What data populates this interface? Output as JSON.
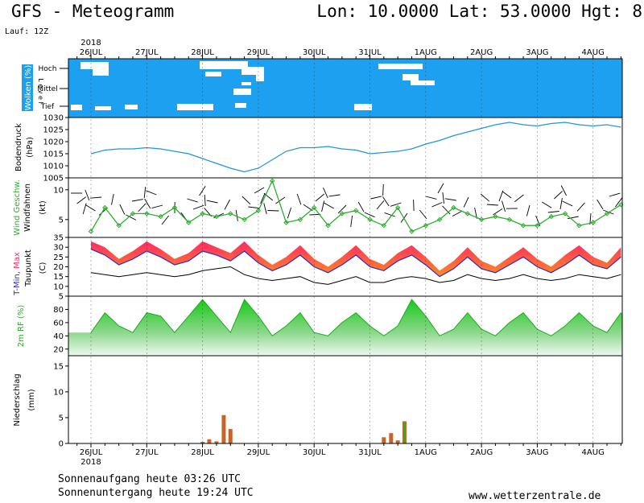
{
  "header": {
    "title": "GFS - Meteogramm",
    "coords": "Lon: 10.0000 Lat: 53.0000 Hgt: 8",
    "run": "Lauf: 12Z"
  },
  "footer": {
    "sunrise": "Sonnenaufgang heute 03:26 UTC",
    "sunset": "Sonnenuntergang heute 19:24 UTC",
    "site": "www.wetterzentrale.de"
  },
  "chart_data": {
    "type": "meteogram",
    "year_label": "2018",
    "dates": [
      "26JUL",
      "27JUL",
      "28JUL",
      "29JUL",
      "30JUL",
      "31JUL",
      "1AUG",
      "2AUG",
      "3AUG",
      "4AUG"
    ],
    "colors": {
      "cloud_bg": "#1ea0f0",
      "pressure_line": "#1e96dc",
      "wind_line": "#2cae2c",
      "temp_fill_low": "#ff8c1e",
      "temp_fill_high": "#ff2a64",
      "tmin_line": "#2a2ad0",
      "dewpoint_line": "#000000",
      "rh_fill": "#3cc83c",
      "precip_rain": "#c86428",
      "precip_conv": "#28b428"
    },
    "panels": [
      {
        "id": "clouds",
        "ylabel": "Wolken (%)",
        "ylabel2": "L e v e l",
        "levels": [
          "Hoch",
          "Mittel",
          "Tief"
        ]
      },
      {
        "id": "pressure",
        "ylabel": "Bodendruck",
        "unit": "(hPa)",
        "ylim": [
          1005,
          1030
        ],
        "ticks": [
          1005,
          1010,
          1015,
          1020,
          1025,
          1030
        ],
        "x": [
          0,
          0.25,
          0.5,
          0.75,
          1,
          1.25,
          1.5,
          1.75,
          2,
          2.25,
          2.5,
          2.75,
          3,
          3.25,
          3.5,
          3.75,
          4,
          4.25,
          4.5,
          4.75,
          5,
          5.25,
          5.5,
          5.75,
          6,
          6.25,
          6.5,
          6.75,
          7,
          7.25,
          7.5,
          7.75,
          8,
          8.25,
          8.5,
          8.75,
          9,
          9.25,
          9.5
        ],
        "values": [
          1015,
          1016.5,
          1017,
          1017,
          1017.5,
          1017,
          1016,
          1015,
          1013,
          1011,
          1009,
          1007.5,
          1009,
          1012.5,
          1016,
          1017.5,
          1017.5,
          1018,
          1017,
          1016.5,
          1015,
          1015.5,
          1016,
          1017,
          1019,
          1020.5,
          1022.5,
          1024,
          1025.5,
          1027,
          1028,
          1027,
          1026.5,
          1027.5,
          1028,
          1027,
          1026.5,
          1027,
          1026
        ]
      },
      {
        "id": "wind",
        "ylabel": "Wind Geschw.",
        "ylabel2": "Windfahnen",
        "unit": "(kt)",
        "ylim": [
          2,
          12
        ],
        "ticks": [
          5,
          10
        ],
        "x": [
          0,
          0.25,
          0.5,
          0.75,
          1,
          1.25,
          1.5,
          1.75,
          2,
          2.25,
          2.5,
          2.75,
          3,
          3.25,
          3.5,
          3.75,
          4,
          4.25,
          4.5,
          4.75,
          5,
          5.25,
          5.5,
          5.75,
          6,
          6.25,
          6.5,
          6.75,
          7,
          7.25,
          7.5,
          7.75,
          8,
          8.25,
          8.5,
          8.75,
          9,
          9.25,
          9.5
        ],
        "values": [
          3,
          7,
          4,
          6,
          6,
          5.5,
          7,
          4.5,
          6,
          5.5,
          6,
          5,
          6.5,
          11.5,
          4.5,
          5,
          7,
          4,
          6,
          6.5,
          5,
          4,
          7,
          3,
          4,
          5,
          7,
          6,
          5,
          5.5,
          5,
          4,
          4,
          5.5,
          6,
          4,
          4.5,
          6,
          7.5
        ]
      },
      {
        "id": "temperature",
        "ylabel": "T-Min, Max",
        "ylabel2": "Taupunkt",
        "unit": "(C)",
        "ylim": [
          5,
          35
        ],
        "ticks": [
          5,
          10,
          15,
          20,
          25,
          30,
          35
        ],
        "x": [
          0,
          0.25,
          0.5,
          0.75,
          1,
          1.25,
          1.5,
          1.75,
          2,
          2.25,
          2.5,
          2.75,
          3,
          3.25,
          3.5,
          3.75,
          4,
          4.25,
          4.5,
          4.75,
          5,
          5.25,
          5.5,
          5.75,
          6,
          6.25,
          6.5,
          6.75,
          7,
          7.25,
          7.5,
          7.75,
          8,
          8.25,
          8.5,
          8.75,
          9,
          9.25,
          9.5
        ],
        "tmax": [
          33,
          30,
          24,
          28,
          33,
          29,
          24,
          27,
          33,
          30,
          27,
          33,
          26,
          21,
          25,
          31,
          24,
          20,
          25,
          31,
          24,
          21,
          27,
          31,
          25,
          18,
          23,
          30,
          23,
          20,
          25,
          30,
          24,
          20,
          26,
          31,
          25,
          22,
          30
        ],
        "tmin": [
          29,
          26,
          21,
          24,
          28,
          25,
          21,
          23,
          28,
          26,
          23,
          28,
          22,
          18,
          21,
          26,
          20,
          17,
          21,
          26,
          20,
          18,
          23,
          26,
          21,
          15,
          19,
          25,
          19,
          17,
          21,
          25,
          20,
          17,
          21,
          26,
          21,
          19,
          25
        ],
        "dewpoint": [
          17,
          16,
          15,
          16,
          17,
          16,
          15,
          16,
          18,
          19,
          20,
          16,
          14,
          13,
          14,
          15,
          12,
          11,
          13,
          15,
          12,
          12,
          14,
          15,
          14,
          12,
          13,
          16,
          14,
          13,
          14,
          16,
          14,
          13,
          14,
          16,
          15,
          14,
          16
        ]
      },
      {
        "id": "rh",
        "ylabel": "2m RF (%)",
        "ylim": [
          10,
          100
        ],
        "ticks": [
          20,
          40,
          60,
          80
        ],
        "x": [
          0,
          0.25,
          0.5,
          0.75,
          1,
          1.25,
          1.5,
          1.75,
          2,
          2.25,
          2.5,
          2.75,
          3,
          3.25,
          3.5,
          3.75,
          4,
          4.25,
          4.5,
          4.75,
          5,
          5.25,
          5.5,
          5.75,
          6,
          6.25,
          6.5,
          6.75,
          7,
          7.25,
          7.5,
          7.75,
          8,
          8.25,
          8.5,
          8.75,
          9,
          9.25,
          9.5
        ],
        "values": [
          45,
          75,
          55,
          45,
          75,
          70,
          45,
          70,
          95,
          70,
          45,
          95,
          70,
          40,
          55,
          75,
          45,
          40,
          60,
          75,
          55,
          40,
          55,
          95,
          70,
          40,
          50,
          75,
          50,
          40,
          60,
          75,
          50,
          40,
          55,
          75,
          55,
          45,
          75
        ]
      },
      {
        "id": "precip",
        "ylabel": "Niederschlag",
        "unit": "(mm)",
        "ylim": [
          0,
          17
        ],
        "ticks": [
          0,
          5,
          10,
          15
        ],
        "bars": [
          {
            "x": 2.0,
            "rain": 0.3,
            "conv": 0.0
          },
          {
            "x": 2.12,
            "rain": 0.8,
            "conv": 0.0
          },
          {
            "x": 2.25,
            "rain": 0.4,
            "conv": 0.0
          },
          {
            "x": 2.38,
            "rain": 5.5,
            "conv": 0.0
          },
          {
            "x": 2.5,
            "rain": 2.8,
            "conv": 0.0
          },
          {
            "x": 5.25,
            "rain": 1.2,
            "conv": 0.0
          },
          {
            "x": 5.38,
            "rain": 2.0,
            "conv": 0.0
          },
          {
            "x": 5.5,
            "rain": 0.6,
            "conv": 0.0
          },
          {
            "x": 5.62,
            "rain": 4.3,
            "conv": 4.3
          }
        ]
      }
    ]
  }
}
